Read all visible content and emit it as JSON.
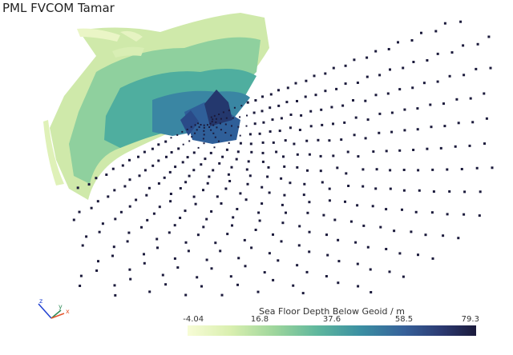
{
  "title": "PML FVCOM Tamar",
  "colorbar": {
    "title": "Sea Floor Depth Below Geoid / m",
    "ticks": [
      "-4.04",
      "16.8",
      "37.6",
      "58.5",
      "79.3"
    ],
    "range": [
      -4.04,
      79.3
    ],
    "colormap": [
      "#f7fcd6",
      "#d9efaf",
      "#9ed69c",
      "#5fb79d",
      "#3b8fa2",
      "#36619a",
      "#2c3a72",
      "#1b1a3b"
    ]
  },
  "axes": {
    "x": "x",
    "y": "y",
    "z": "z",
    "x_color": "#e4572e",
    "y_color": "#2e8b57",
    "z_color": "#1f3fd1"
  }
}
